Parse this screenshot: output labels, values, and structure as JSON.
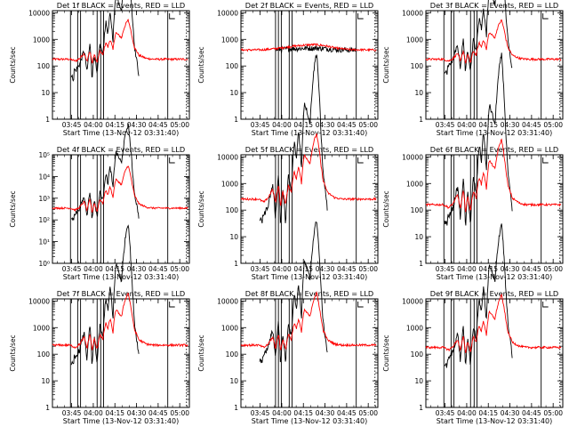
{
  "chart_data": [
    {
      "type": "line",
      "title": "Det 1f BLACK = Events, RED = LLD",
      "xlabel": "Start Time (13-Nov-12 03:31:40)",
      "ylabel": "Counts/sec",
      "yscale": "log",
      "ylim": [
        1,
        12000
      ],
      "y_ticks": [
        1,
        10,
        100,
        1000,
        10000
      ],
      "x_ticks": [
        "03:45",
        "04:00",
        "04:15",
        "04:30",
        "04:45",
        "05:00"
      ],
      "xlim_min": [
        0,
        95
      ],
      "shape": "flare",
      "events_rate": [
        100,
        4,
        0.7
      ],
      "lld_rate": [
        180,
        1.5,
        0.55
      ],
      "solid_verticals_min": [
        12.5,
        17.5,
        19.5,
        31,
        33.5,
        35.5,
        80
      ],
      "dotted_verticals_min": [
        93
      ],
      "series": [
        {
          "name": "BLACK = Events",
          "color": "#000000"
        },
        {
          "name": "RED = LLD",
          "color": "#ff0000"
        }
      ]
    },
    {
      "type": "line",
      "title": "Det 2f BLACK = Events, RED = LLD",
      "xlabel": "Start Time (13-Nov-12 03:31:40)",
      "ylabel": "Counts/sec",
      "yscale": "log",
      "ylim": [
        1,
        12000
      ],
      "y_ticks": [
        1,
        10,
        100,
        1000,
        10000
      ],
      "x_ticks": [
        "03:45",
        "04:00",
        "04:15",
        "04:30",
        "04:45",
        "05:00"
      ],
      "xlim_min": [
        0,
        95
      ],
      "shape": "smooth",
      "events_rate": [
        400,
        0.25
      ],
      "lld_rate": [
        400,
        0.7
      ],
      "solid_verticals_min": [
        24,
        26,
        28,
        33.5,
        35.5,
        80
      ],
      "dotted_verticals_min": [
        93
      ],
      "series": [
        {
          "name": "BLACK = Events",
          "color": "#000000"
        },
        {
          "name": "RED = LLD",
          "color": "#ff0000"
        }
      ]
    },
    {
      "type": "line",
      "title": "Det 3f BLACK = Events, RED = LLD",
      "xlabel": "Start Time (13-Nov-12 03:31:40)",
      "ylabel": "Counts/sec",
      "yscale": "log",
      "ylim": [
        1,
        12000
      ],
      "y_ticks": [
        1,
        10,
        100,
        1000,
        10000
      ],
      "x_ticks": [
        "03:45",
        "04:00",
        "04:15",
        "04:30",
        "04:45",
        "05:00"
      ],
      "xlim_min": [
        0,
        95
      ],
      "shape": "flare",
      "events_rate": [
        150,
        4,
        0.65
      ],
      "lld_rate": [
        180,
        1.5,
        0.55
      ],
      "solid_verticals_min": [
        12.5,
        17.5,
        19.5,
        31,
        33.5,
        35.5,
        80
      ],
      "dotted_verticals_min": [
        93
      ],
      "series": [
        {
          "name": "BLACK = Events",
          "color": "#000000"
        },
        {
          "name": "RED = LLD",
          "color": "#ff0000"
        }
      ]
    },
    {
      "type": "line",
      "title": "Det 4f BLACK = Events, RED = LLD",
      "xlabel": "Start Time (13-Nov-12 03:31:40)",
      "ylabel": "Counts/sec",
      "yscale": "log",
      "ylim": [
        1,
        100000
      ],
      "y_ticks": [
        1,
        10,
        100,
        1000,
        10000,
        100000
      ],
      "y_tick_labels": [
        "10⁰",
        "10¹",
        "10²",
        "10³",
        "10⁴",
        "10⁵"
      ],
      "x_ticks": [
        "03:45",
        "04:00",
        "04:15",
        "04:30",
        "04:45",
        "05:00"
      ],
      "xlim_min": [
        0,
        95
      ],
      "shape": "flare",
      "events_rate": [
        300,
        4,
        0.7
      ],
      "lld_rate": [
        350,
        2,
        0.6
      ],
      "solid_verticals_min": [
        12.5,
        17.5,
        19.5,
        31,
        33.5,
        35.5,
        80
      ],
      "dotted_verticals_min": [
        93
      ],
      "series": [
        {
          "name": "BLACK = Events",
          "color": "#000000"
        },
        {
          "name": "RED = LLD",
          "color": "#ff0000"
        }
      ]
    },
    {
      "type": "line",
      "title": "Det 5f BLACK = Events, RED = LLD",
      "xlabel": "Start Time (13-Nov-12 03:31:40)",
      "ylabel": "Counts/sec",
      "yscale": "log",
      "ylim": [
        1,
        12000
      ],
      "y_ticks": [
        1,
        10,
        100,
        1000,
        10000
      ],
      "x_ticks": [
        "03:45",
        "04:00",
        "04:15",
        "04:30",
        "04:45",
        "05:00"
      ],
      "xlim_min": [
        0,
        95
      ],
      "shape": "flare",
      "events_rate": [
        120,
        6,
        0.6
      ],
      "lld_rate": [
        260,
        2.5,
        0.55
      ],
      "solid_verticals_min": [
        24,
        26,
        28,
        33.5,
        35.5,
        80
      ],
      "dotted_verticals_min": [
        93
      ],
      "series": [
        {
          "name": "BLACK = Events",
          "color": "#000000"
        },
        {
          "name": "RED = LLD",
          "color": "#ff0000"
        }
      ]
    },
    {
      "type": "line",
      "title": "Det 6f BLACK = Events, RED = LLD",
      "xlabel": "Start Time (13-Nov-12 03:31:40)",
      "ylabel": "Counts/sec",
      "yscale": "log",
      "ylim": [
        1,
        12000
      ],
      "y_ticks": [
        1,
        10,
        100,
        1000,
        10000
      ],
      "x_ticks": [
        "03:45",
        "04:00",
        "04:15",
        "04:30",
        "04:45",
        "05:00"
      ],
      "xlim_min": [
        0,
        95
      ],
      "shape": "flare",
      "events_rate": [
        100,
        6,
        0.6
      ],
      "lld_rate": [
        160,
        2.5,
        0.55
      ],
      "solid_verticals_min": [
        12.5,
        17.5,
        19.5,
        31,
        33.5,
        35.5,
        80
      ],
      "dotted_verticals_min": [
        93
      ],
      "series": [
        {
          "name": "BLACK = Events",
          "color": "#000000"
        },
        {
          "name": "RED = LLD",
          "color": "#ff0000"
        }
      ]
    },
    {
      "type": "line",
      "title": "Det 7f BLACK = Events, RED = LLD",
      "xlabel": "Start Time (13-Nov-12 03:31:40)",
      "ylabel": "Counts/sec",
      "yscale": "log",
      "ylim": [
        1,
        12000
      ],
      "y_ticks": [
        1,
        10,
        100,
        1000,
        10000
      ],
      "x_ticks": [
        "03:45",
        "04:00",
        "04:15",
        "04:30",
        "04:45",
        "05:00"
      ],
      "xlim_min": [
        0,
        95
      ],
      "shape": "flare",
      "events_rate": [
        120,
        5,
        0.6
      ],
      "lld_rate": [
        220,
        2,
        0.55
      ],
      "solid_verticals_min": [
        12.5,
        17.5,
        19.5,
        31,
        33.5,
        35.5,
        80
      ],
      "dotted_verticals_min": [
        93
      ],
      "series": [
        {
          "name": "BLACK = Events",
          "color": "#000000"
        },
        {
          "name": "RED = LLD",
          "color": "#ff0000"
        }
      ]
    },
    {
      "type": "line",
      "title": "Det 8f BLACK = Events, RED = LLD",
      "xlabel": "Start Time (13-Nov-12 03:31:40)",
      "ylabel": "Counts/sec",
      "yscale": "log",
      "ylim": [
        1,
        12000
      ],
      "y_ticks": [
        1,
        10,
        100,
        1000,
        10000
      ],
      "x_ticks": [
        "03:45",
        "04:00",
        "04:15",
        "04:30",
        "04:45",
        "05:00"
      ],
      "xlim_min": [
        0,
        95
      ],
      "shape": "flare",
      "events_rate": [
        150,
        5,
        0.6
      ],
      "lld_rate": [
        220,
        2,
        0.55
      ],
      "solid_verticals_min": [
        24,
        26,
        28,
        33.5,
        35.5,
        80
      ],
      "dotted_verticals_min": [
        93
      ],
      "series": [
        {
          "name": "BLACK = Events",
          "color": "#000000"
        },
        {
          "name": "RED = LLD",
          "color": "#ff0000"
        }
      ]
    },
    {
      "type": "line",
      "title": "Det 9f BLACK = Events, RED = LLD",
      "xlabel": "Start Time (13-Nov-12 03:31:40)",
      "ylabel": "Counts/sec",
      "yscale": "log",
      "ylim": [
        1,
        12000
      ],
      "y_ticks": [
        1,
        10,
        100,
        1000,
        10000
      ],
      "x_ticks": [
        "03:45",
        "04:00",
        "04:15",
        "04:30",
        "04:45",
        "05:00"
      ],
      "xlim_min": [
        0,
        95
      ],
      "shape": "flare",
      "events_rate": [
        110,
        5,
        0.6
      ],
      "lld_rate": [
        180,
        2,
        0.55
      ],
      "solid_verticals_min": [
        12.5,
        17.5,
        19.5,
        31,
        33.5,
        35.5,
        80
      ],
      "dotted_verticals_min": [
        93
      ],
      "series": [
        {
          "name": "BLACK = Events",
          "color": "#000000"
        },
        {
          "name": "RED = LLD",
          "color": "#ff0000"
        }
      ]
    }
  ]
}
